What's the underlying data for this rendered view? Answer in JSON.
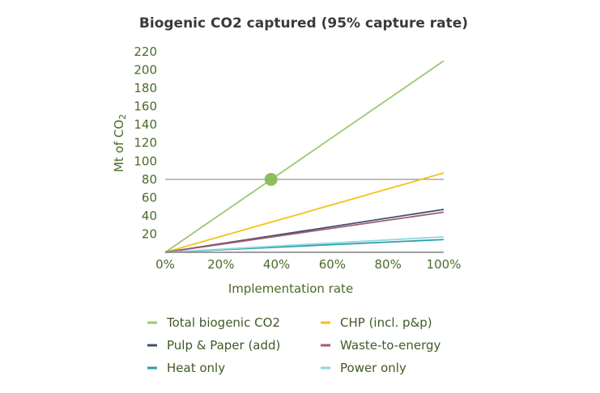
{
  "chart_data": {
    "type": "line",
    "title": "Biogenic CO2 captured (95% capture rate)",
    "xlabel": "Implementation rate",
    "ylabel": "Mt of CO",
    "ylabel_subscript": "2",
    "x": [
      0,
      100
    ],
    "x_ticks": [
      "0%",
      "20%",
      "40%",
      "60%",
      "80%",
      "100%"
    ],
    "y_ticks": [
      "20",
      "40",
      "60",
      "80",
      "100",
      "120",
      "140",
      "160",
      "180",
      "200",
      "220"
    ],
    "xlim": [
      0,
      100
    ],
    "ylim": [
      0,
      220
    ],
    "grid": false,
    "reference_line_y": 80,
    "marker": {
      "x": 38,
      "y": 80,
      "color": "#8dbd5a"
    },
    "legend_position": "bottom",
    "series": [
      {
        "name": "Total biogenic CO2",
        "values": [
          0,
          210
        ],
        "color": "#9cc96b"
      },
      {
        "name": "CHP (incl. p&p)",
        "values": [
          0,
          87
        ],
        "color": "#f2c318"
      },
      {
        "name": "Pulp & Paper (add)",
        "values": [
          0,
          47
        ],
        "color": "#3f4f6e"
      },
      {
        "name": "Waste-to-energy",
        "values": [
          0,
          44
        ],
        "color": "#a05a72"
      },
      {
        "name": "Heat only",
        "values": [
          0,
          14
        ],
        "color": "#2a9ea8"
      },
      {
        "name": "Power only",
        "values": [
          0,
          17
        ],
        "color": "#8fd6e0"
      }
    ]
  }
}
